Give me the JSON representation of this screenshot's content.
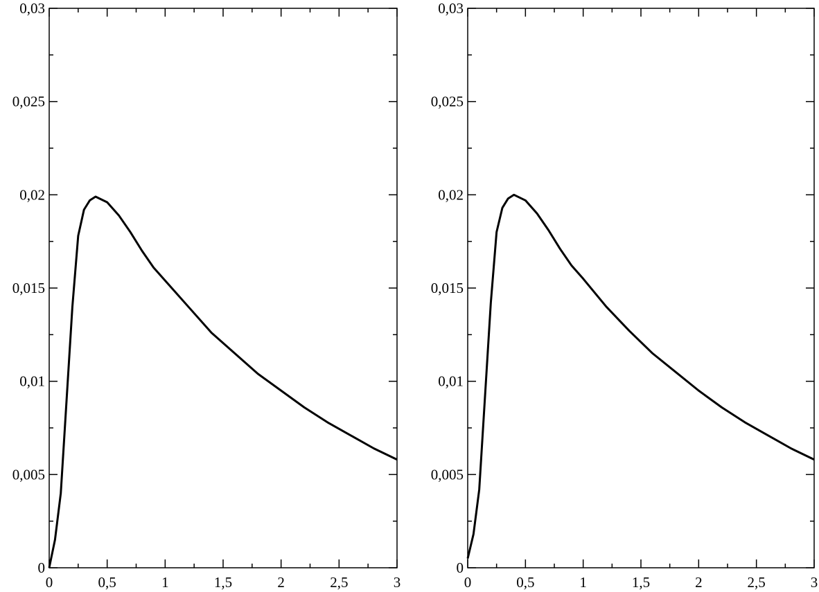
{
  "chart_data": [
    {
      "type": "line",
      "x": [
        0,
        0.05,
        0.1,
        0.15,
        0.2,
        0.25,
        0.3,
        0.35,
        0.4,
        0.5,
        0.6,
        0.7,
        0.8,
        0.9,
        1.0,
        1.2,
        1.4,
        1.6,
        1.8,
        2.0,
        2.2,
        2.4,
        2.6,
        2.8,
        3.0
      ],
      "series": [
        {
          "color": "#000000",
          "values": [
            0,
            0.0015,
            0.004,
            0.009,
            0.014,
            0.0178,
            0.0192,
            0.0197,
            0.0199,
            0.0196,
            0.0189,
            0.018,
            0.017,
            0.0161,
            0.0154,
            0.014,
            0.0126,
            0.0115,
            0.0104,
            0.0095,
            0.0086,
            0.0078,
            0.0071,
            0.0064,
            0.0058
          ]
        }
      ],
      "xlim": [
        0,
        3
      ],
      "ylim": [
        0,
        0.03
      ],
      "xticks": [
        0,
        {
          "value": 0.5,
          "label": "0,5"
        },
        1,
        {
          "value": 1.5,
          "label": "1,5"
        },
        2,
        {
          "value": 2.5,
          "label": "2,5"
        },
        3
      ],
      "yticks": [
        0,
        {
          "value": 0.005,
          "label": "0,005"
        },
        {
          "value": 0.01,
          "label": "0,01"
        },
        {
          "value": 0.015,
          "label": "0,015"
        },
        {
          "value": 0.02,
          "label": "0,02"
        },
        {
          "value": 0.025,
          "label": "0,025"
        },
        {
          "value": 0.03,
          "label": "0,03"
        }
      ],
      "xminorticks": [
        0.25,
        0.75,
        1.25,
        1.75,
        2.25,
        2.75
      ],
      "yminorticks": [
        0.0025,
        0.0075,
        0.0125,
        0.0175,
        0.0225,
        0.0275
      ]
    },
    {
      "type": "line",
      "x": [
        0,
        0.05,
        0.1,
        0.15,
        0.2,
        0.25,
        0.3,
        0.35,
        0.4,
        0.5,
        0.6,
        0.7,
        0.8,
        0.9,
        1.0,
        1.2,
        1.4,
        1.6,
        1.8,
        2.0,
        2.2,
        2.4,
        2.6,
        2.8,
        3.0
      ],
      "series": [
        {
          "color": "#000000",
          "values": [
            0.0005,
            0.0018,
            0.0042,
            0.0092,
            0.0142,
            0.018,
            0.0193,
            0.0198,
            0.02,
            0.0197,
            0.019,
            0.0181,
            0.0171,
            0.0162,
            0.0155,
            0.014,
            0.0127,
            0.0115,
            0.0105,
            0.0095,
            0.0086,
            0.0078,
            0.0071,
            0.0064,
            0.0058
          ]
        }
      ],
      "xlim": [
        0,
        3
      ],
      "ylim": [
        0,
        0.03
      ],
      "xticks": [
        0,
        {
          "value": 0.5,
          "label": "0,5"
        },
        1,
        {
          "value": 1.5,
          "label": "1,5"
        },
        2,
        {
          "value": 2.5,
          "label": "2,5"
        },
        3
      ],
      "yticks": [
        0,
        {
          "value": 0.005,
          "label": "0,005"
        },
        {
          "value": 0.01,
          "label": "0,01"
        },
        {
          "value": 0.015,
          "label": "0,015"
        },
        {
          "value": 0.02,
          "label": "0,02"
        },
        {
          "value": 0.025,
          "label": "0,025"
        },
        {
          "value": 0.03,
          "label": "0,03"
        }
      ],
      "xminorticks": [
        0.25,
        0.75,
        1.25,
        1.75,
        2.25,
        2.75
      ],
      "yminorticks": [
        0.0025,
        0.0075,
        0.0125,
        0.0175,
        0.0225,
        0.0275
      ]
    }
  ]
}
